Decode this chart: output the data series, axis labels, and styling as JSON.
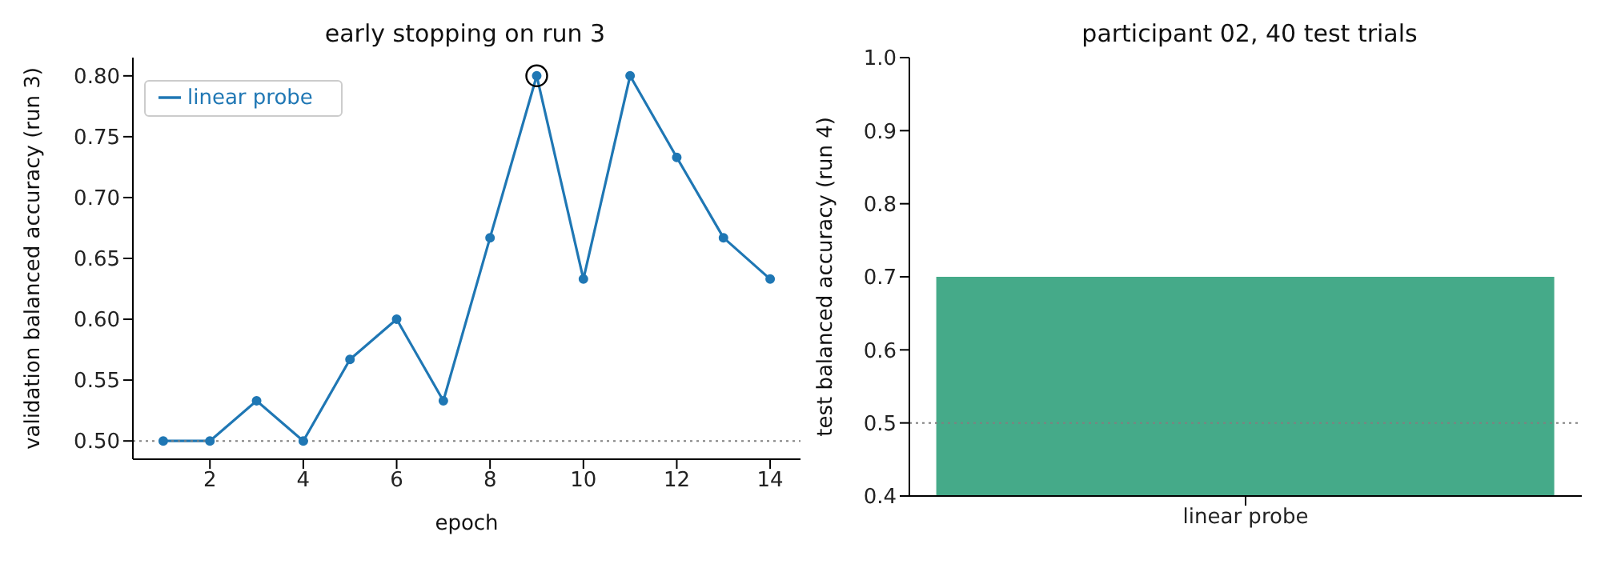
{
  "chart_data": [
    {
      "type": "line",
      "title": "early stopping on run 3",
      "xlabel": "epoch",
      "ylabel": "validation balanced accuracy (run 3)",
      "x": [
        1,
        2,
        3,
        4,
        5,
        6,
        7,
        8,
        9,
        10,
        11,
        12,
        13,
        14
      ],
      "series": [
        {
          "name": "linear probe",
          "color": "#1f77b4",
          "values": [
            0.5,
            0.5,
            0.533,
            0.5,
            0.567,
            0.6,
            0.533,
            0.667,
            0.8,
            0.633,
            0.8,
            0.733,
            0.667,
            0.633
          ]
        },
        {
          "type": "scatter",
          "color": "#000000",
          "x": [
            9
          ],
          "values": [
            0.8
          ]
        }
      ],
      "xlim": [
        0.35,
        14.65
      ],
      "xticks": [
        2,
        4,
        6,
        8,
        10,
        12,
        14
      ],
      "ylim": [
        0.485,
        0.815
      ],
      "yticks": [
        {
          "value": 0.5,
          "label": "0.50"
        },
        {
          "value": 0.55,
          "label": "0.55"
        },
        {
          "value": 0.6,
          "label": "0.60"
        },
        {
          "value": 0.65,
          "label": "0.65"
        },
        {
          "value": 0.7,
          "label": "0.70"
        },
        {
          "value": 0.75,
          "label": "0.75"
        },
        {
          "value": 0.8,
          "label": "0.80"
        }
      ],
      "ref_lines": [
        {
          "axis": "y",
          "value": 0.5,
          "color": "#808080",
          "line_style": "dotted"
        }
      ],
      "legend": "top left",
      "marker": "circle",
      "grid": false
    },
    {
      "type": "bar",
      "title": "participant 02, 40 test trials",
      "ylabel": "test balanced accuracy (run 4)",
      "categories": [
        "linear probe"
      ],
      "values": [
        0.7
      ],
      "color": "#45aa89",
      "ylim": [
        0.4,
        1.0
      ],
      "yticks": [
        0.4,
        0.5,
        0.6,
        0.7,
        0.8,
        0.9,
        {
          "value": 1.0,
          "label": "1.0"
        }
      ],
      "ref_lines": [
        {
          "axis": "y",
          "value": 0.5,
          "color": "#808080",
          "line_style": "dotted"
        }
      ],
      "grid": false
    }
  ]
}
